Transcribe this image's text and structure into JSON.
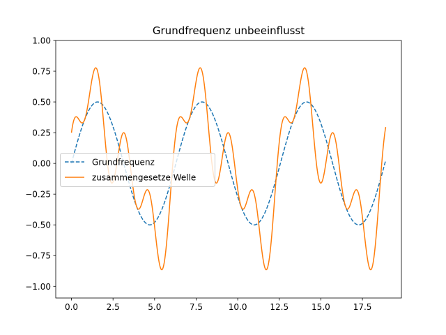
{
  "chart_data": {
    "type": "line",
    "title": "Grundfrequenz unbeeinflusst",
    "xlabel": "",
    "ylabel": "",
    "xlim": [
      -0.945,
      19.845
    ],
    "ylim": [
      -1.095,
      1.0
    ],
    "x_start": 0.0,
    "x_end": 18.9,
    "x_ticks": [
      0.0,
      2.5,
      5.0,
      7.5,
      10.0,
      12.5,
      15.0,
      17.5
    ],
    "x_tick_labels": [
      "0.0",
      "2.5",
      "5.0",
      "7.5",
      "10.0",
      "12.5",
      "15.0",
      "17.5"
    ],
    "y_ticks": [
      -1.0,
      -0.75,
      -0.5,
      -0.25,
      0.0,
      0.25,
      0.5,
      0.75,
      1.0
    ],
    "y_tick_labels": [
      "−1.00",
      "−0.75",
      "−0.50",
      "−0.25",
      "0.00",
      "0.25",
      "0.50",
      "0.75",
      "1.00"
    ],
    "grid": false,
    "legend_position": "center-left",
    "series": [
      {
        "name": "Grundfrequenz",
        "color": "#1f77b4",
        "dash": "dashed",
        "formula": "0.5*sin(x)"
      },
      {
        "name": "zusammengesetze Welle",
        "color": "#ff7f0e",
        "dash": "solid",
        "formula": "0.5*sin(x) + 0.25*sin(2x) + 0.25*cos(4x)"
      }
    ]
  }
}
